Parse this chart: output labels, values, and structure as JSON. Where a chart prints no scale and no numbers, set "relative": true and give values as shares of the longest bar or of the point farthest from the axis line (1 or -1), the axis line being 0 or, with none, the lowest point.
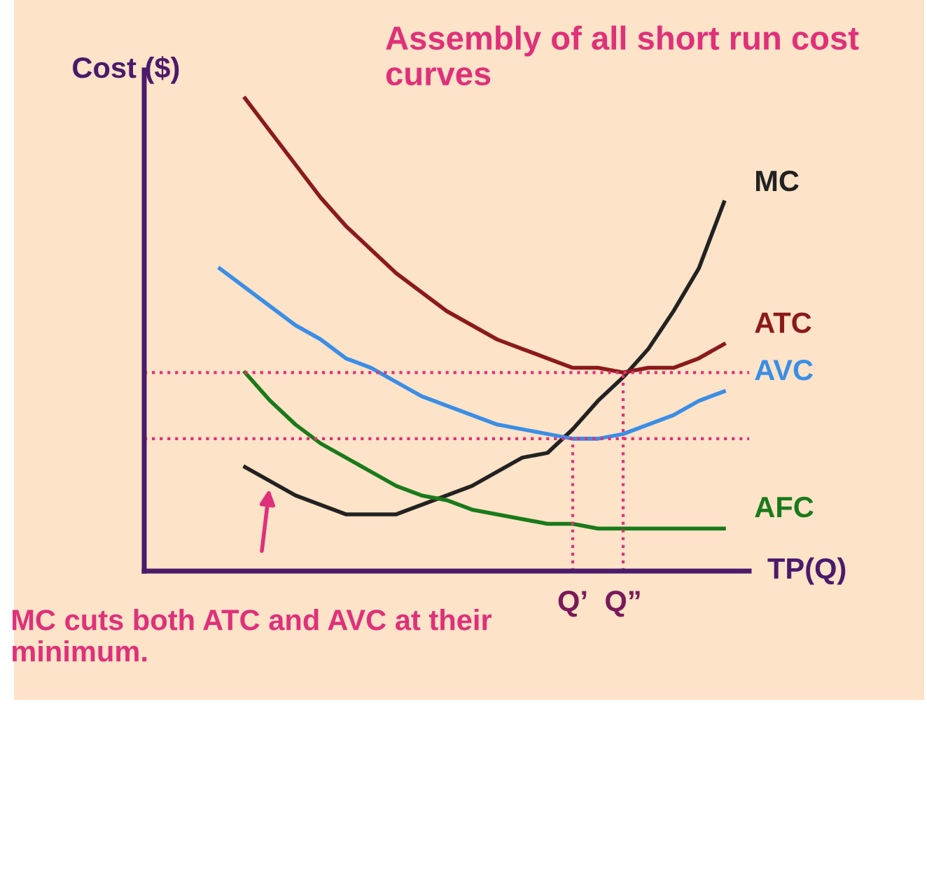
{
  "chart_data": {
    "type": "line",
    "title": "Assembly of all short run cost curves",
    "ylabel": "Cost ($)",
    "xlabel": "TP(Q)",
    "relative": true,
    "legend": false,
    "marker": "none",
    "line_style": "solid",
    "categories": [
      null,
      null,
      null,
      null,
      null,
      null,
      null,
      null,
      null,
      null,
      null,
      null,
      null,
      null,
      null,
      null,
      null,
      null,
      null,
      null,
      null,
      null,
      null,
      null,
      null
    ],
    "series": [
      {
        "name": "MC",
        "color": "#222222",
        "values": [
          null,
          null,
          null,
          null,
          0.22,
          0.19,
          0.16,
          0.14,
          0.12,
          0.12,
          0.12,
          0.14,
          0.16,
          0.18,
          0.21,
          0.24,
          0.25,
          0.3,
          0.36,
          0.41,
          0.47,
          0.55,
          0.64,
          0.78,
          null
        ]
      },
      {
        "name": "ATC",
        "color": "#8b1a1a",
        "values": [
          null,
          null,
          null,
          null,
          1.0,
          0.93,
          0.86,
          0.79,
          0.73,
          0.68,
          0.63,
          0.59,
          0.55,
          0.52,
          0.49,
          0.47,
          0.45,
          0.43,
          0.43,
          0.42,
          0.43,
          0.43,
          0.45,
          0.48,
          null
        ]
      },
      {
        "name": "AVC",
        "color": "#3a8ee6",
        "values": [
          null,
          null,
          null,
          0.64,
          0.6,
          0.56,
          0.52,
          0.49,
          0.45,
          0.43,
          0.4,
          0.37,
          0.35,
          0.33,
          0.31,
          0.3,
          0.29,
          0.28,
          0.28,
          0.29,
          0.31,
          0.33,
          0.36,
          0.38,
          null
        ]
      },
      {
        "name": "AFC",
        "color": "#1a7a1a",
        "values": [
          null,
          null,
          null,
          null,
          0.42,
          0.36,
          0.31,
          0.27,
          0.24,
          0.21,
          0.18,
          0.16,
          0.15,
          0.13,
          0.12,
          0.11,
          0.1,
          0.1,
          0.09,
          0.09,
          0.09,
          0.09,
          0.09,
          0.09,
          null
        ]
      }
    ],
    "ref_lines": [
      {
        "axis": "y",
        "value": 0.42,
        "label": "Q”",
        "color": "#e0307a",
        "line_style": "dotted"
      },
      {
        "axis": "y",
        "value": 0.28,
        "label": "Q’",
        "color": "#e0307a",
        "line_style": "dotted"
      }
    ],
    "annotations": [
      "MC cuts both ATC and AVC at their minimum."
    ]
  }
}
